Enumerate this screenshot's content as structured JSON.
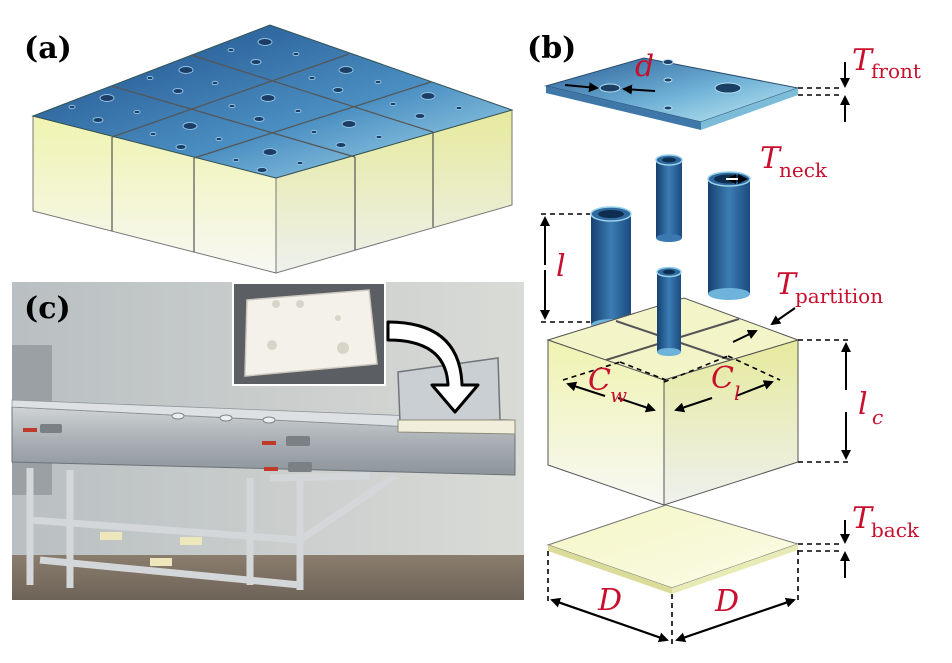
{
  "panels": {
    "a": "(a)",
    "b": "(b)",
    "c": "(c)"
  },
  "symbols": {
    "d": "d",
    "T": "T",
    "front": "front",
    "neck": "neck",
    "l": "l",
    "partition": "partition",
    "C": "C",
    "w": "w",
    "l_sub": "l",
    "l_c": "l",
    "c": "c",
    "back": "back",
    "D1": "D",
    "D2": "D"
  },
  "colors": {
    "label_red": "#c8102e",
    "blue_dark": "#1f4e8c",
    "blue_light": "#a9d8ec",
    "yellow_light": "#fbfbe4",
    "yellow": "#eef0b8"
  }
}
